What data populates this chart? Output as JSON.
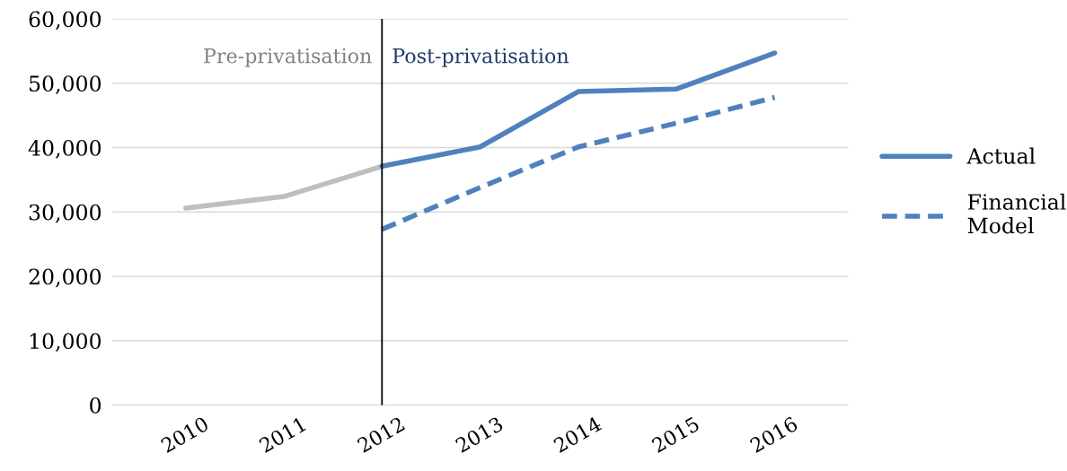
{
  "chart_data": {
    "type": "line",
    "categories": [
      "2010",
      "2011",
      "2012",
      "2013",
      "2014",
      "2015",
      "2016"
    ],
    "series": [
      {
        "color": "#bfbfbf",
        "values": [
          30600,
          32400,
          37100,
          null,
          null,
          null,
          null
        ]
      },
      {
        "name": "Actual",
        "color": "#4f81bd",
        "line_style": "solid",
        "values": [
          null,
          null,
          37100,
          40100,
          48700,
          49100,
          54700
        ]
      },
      {
        "name": "Financial Model",
        "color": "#4f81bd",
        "line_style": "dashed",
        "values": [
          null,
          null,
          27300,
          33800,
          40100,
          43800,
          47800
        ]
      }
    ],
    "ylim": [
      0,
      60000
    ],
    "yticks": [
      {
        "value": 0,
        "label": "0"
      },
      {
        "value": 10000,
        "label": "10,000"
      },
      {
        "value": 20000,
        "label": "20,000"
      },
      {
        "value": 30000,
        "label": "30,000"
      },
      {
        "value": 40000,
        "label": "40,000"
      },
      {
        "value": 50000,
        "label": "50,000"
      },
      {
        "value": 60000,
        "label": "60,000"
      }
    ],
    "grid": "y",
    "legend": "right",
    "marker": "none",
    "ref_lines": [
      {
        "axis": "x",
        "value": "2012",
        "color": "#000000"
      }
    ],
    "annotations": [
      "Pre-privatisation",
      "Post-privatisation"
    ]
  }
}
